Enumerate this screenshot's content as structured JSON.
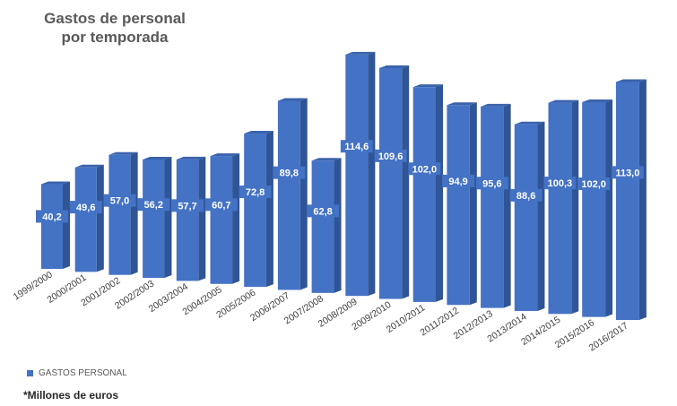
{
  "colors": {
    "bar_front": "#4472c4",
    "bar_side": "#2f5597",
    "bar_top": "#3b63ac",
    "label_text": "#ffffff",
    "title": "#595959",
    "axis_text": "#404040"
  },
  "chart_data": {
    "type": "bar",
    "style": "3d-perspective",
    "title": "Gastos de personal\npor temporada",
    "categories": [
      "1999/2000",
      "2000/2001",
      "2001/2002",
      "2002/2003",
      "2003/2004",
      "2004/2005",
      "2005/2006",
      "2006/2007",
      "2007/2008",
      "2008/2009",
      "2009/2010",
      "2010/2011",
      "2011/2012",
      "2012/2013",
      "2013/2014",
      "2014/2015",
      "2015/2016",
      "2016/2017"
    ],
    "series": [
      {
        "name": "GASTOS PERSONAL",
        "values": [
          40.2,
          49.6,
          57.0,
          56.2,
          57.7,
          60.7,
          72.8,
          89.8,
          62.8,
          114.6,
          109.6,
          102.0,
          94.9,
          95.6,
          88.6,
          100.3,
          102.0,
          113.0
        ],
        "labels": [
          "40,2",
          "49,6",
          "57,0",
          "56,2",
          "57,7",
          "60,7",
          "72,8",
          "89,8",
          "62,8",
          "114,6",
          "109,6",
          "102,0",
          "94,9",
          "95,6",
          "88,6",
          "100,3",
          "102,0",
          "113,0"
        ]
      }
    ],
    "xlabel": "",
    "ylabel": "",
    "grid": false,
    "legend_position": "bottom-left"
  },
  "footnote": "*Millones de euros"
}
